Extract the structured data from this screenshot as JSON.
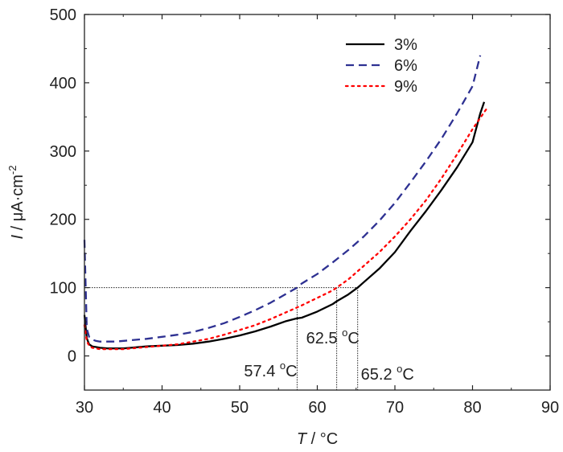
{
  "chart_data": {
    "type": "line",
    "xlabel_italic": "T",
    "xlabel_rest": " / °C",
    "ylabel_italic": "I",
    "ylabel_rest": " / μA·cm",
    "ylabel_exp": "-2",
    "xlim": [
      30,
      90
    ],
    "ylim": [
      -50,
      500
    ],
    "x_ticks": [
      30,
      40,
      50,
      60,
      70,
      80,
      90
    ],
    "y_ticks": [
      0,
      100,
      200,
      300,
      400,
      500
    ],
    "legend_position": "top-right",
    "series": [
      {
        "name": "3%",
        "color": "#000000",
        "dash": "solid",
        "x": [
          30.0,
          30.3,
          30.6,
          31.0,
          31.5,
          32,
          33,
          34,
          35,
          36,
          38,
          40,
          42,
          44,
          46,
          48,
          50,
          52,
          54,
          56,
          57.4,
          58,
          60,
          62,
          62.5,
          64,
          65.2,
          66,
          68,
          70,
          72,
          74,
          76,
          78,
          80,
          81,
          81.5
        ],
        "y": [
          60,
          26,
          17,
          14,
          13,
          12,
          11,
          11,
          11,
          12,
          14,
          15,
          16,
          18,
          21,
          25,
          30,
          36,
          43,
          51,
          55,
          56,
          65,
          76,
          80,
          90,
          100,
          108,
          128,
          152,
          183,
          212,
          243,
          276,
          313,
          355,
          372
        ]
      },
      {
        "name": "6%",
        "color": "#2e3192",
        "dash": "dashed",
        "x": [
          30.0,
          30.3,
          30.6,
          31.0,
          31.5,
          32,
          33,
          34,
          36,
          38,
          40,
          42,
          44,
          46,
          48,
          50,
          52,
          54,
          56,
          57.4,
          58,
          60,
          62,
          64,
          66,
          68,
          70,
          72,
          74,
          76,
          78,
          80,
          81
        ],
        "y": [
          170,
          40,
          28,
          24,
          22,
          21,
          21,
          21,
          23,
          25,
          28,
          31,
          35,
          41,
          48,
          57,
          67,
          78,
          91,
          100,
          106,
          120,
          137,
          155,
          175,
          198,
          224,
          254,
          285,
          318,
          355,
          395,
          440
        ]
      },
      {
        "name": "9%",
        "color": "#ff0000",
        "dash": "dotted",
        "x": [
          30.0,
          30.3,
          30.6,
          31.0,
          31.5,
          32,
          33,
          34,
          35,
          36,
          38,
          40,
          42,
          44,
          46,
          48,
          50,
          52,
          54,
          56,
          58,
          60,
          62,
          62.5,
          64,
          66,
          68,
          70,
          72,
          74,
          76,
          78,
          80,
          82
        ],
        "y": [
          45,
          22,
          15,
          12,
          11,
          10,
          10,
          10,
          10,
          11,
          13,
          15,
          17,
          21,
          25,
          31,
          38,
          45,
          54,
          64,
          74,
          85,
          96,
          100,
          112,
          132,
          152,
          175,
          200,
          228,
          260,
          295,
          332,
          365
        ]
      }
    ],
    "reference_line_y": 100,
    "annotations": [
      {
        "value": "57.4",
        "unit": "C",
        "x": 57.4
      },
      {
        "value": "62.5",
        "unit": "C",
        "x": 62.5
      },
      {
        "value": "65.2",
        "unit": "C",
        "x": 65.2
      }
    ]
  }
}
